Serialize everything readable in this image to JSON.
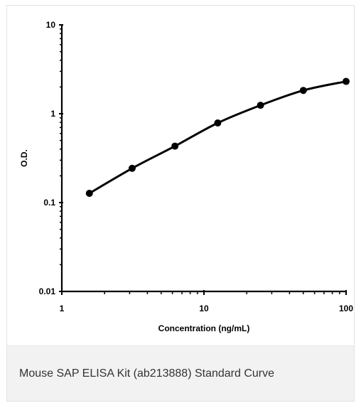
{
  "chart_data": {
    "type": "line",
    "xscale": "log",
    "yscale": "log",
    "xlabel": "Concentration (ng/mL)",
    "ylabel": "O.D.",
    "xlim": [
      1,
      100
    ],
    "ylim": [
      0.01,
      10
    ],
    "x_tick_labels": [
      "1",
      "10",
      "100"
    ],
    "y_tick_labels": [
      "0.01",
      "0.1",
      "1",
      "10"
    ],
    "grid": false,
    "legend": "none",
    "series": [
      {
        "x": [
          1.5625,
          3.125,
          6.25,
          12.5,
          25,
          50,
          100
        ],
        "y": [
          0.127,
          0.243,
          0.432,
          0.787,
          1.245,
          1.83,
          2.31
        ],
        "color": "#000000"
      }
    ]
  },
  "caption": {
    "text": "Mouse SAP ELISA Kit (ab213888) Standard Curve"
  }
}
